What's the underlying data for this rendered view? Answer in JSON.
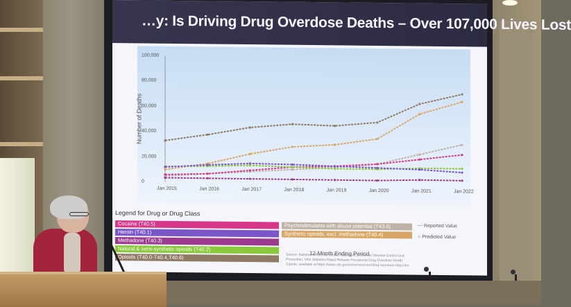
{
  "slide": {
    "title": "…y: Is Driving Drug Overdose Deaths – Over 107,000 Lives Lost"
  },
  "chart_data": {
    "type": "line",
    "title": "…y: Is Driving Drug Overdose Deaths – Over 107,000 Lives Lost",
    "ylabel": "Number of Deaths",
    "xlabel": "12-Month Ending Period",
    "ylim": [
      0,
      100000
    ],
    "yticks": [
      "100,000",
      "80,000",
      "60,000",
      "40,000",
      "20,000",
      "0"
    ],
    "x": [
      "Jan 2015",
      "Jan 2016",
      "Jan 2017",
      "Jan 2018",
      "Jan 2019",
      "Jan 2020",
      "Jan 2021",
      "Jan 2022"
    ],
    "series": [
      {
        "name": "Opioids (T40.0-T40.4,T40.6)",
        "color": "#8f7a63",
        "values": [
          33000,
          38000,
          44000,
          47000,
          46000,
          49000,
          64000,
          72000
        ]
      },
      {
        "name": "Synthetic opioids, excl. methadone (T40.4)",
        "color": "#d8a765",
        "values": [
          10000,
          15000,
          23000,
          29000,
          31000,
          36000,
          56000,
          66000
        ]
      },
      {
        "name": "Psychostimulants with abuse potential (T43.6)",
        "color": "#bfb2a6",
        "values": [
          5000,
          7000,
          9000,
          11000,
          13000,
          16000,
          24000,
          32000
        ]
      },
      {
        "name": "Cocaine (T40.5)",
        "color": "#d9388a",
        "values": [
          6000,
          7000,
          10000,
          13000,
          14000,
          16000,
          20000,
          24000
        ]
      },
      {
        "name": "Natural & semi-synthetic opioids (T40.2)",
        "color": "#8ac83c",
        "values": [
          12500,
          13000,
          14000,
          13000,
          12000,
          12000,
          13000,
          13000
        ]
      },
      {
        "name": "Heroin (T40.1)",
        "color": "#7a56c9",
        "values": [
          12000,
          14000,
          15500,
          15000,
          14000,
          13000,
          12000,
          10000
        ]
      },
      {
        "name": "Methadone (T40.3)",
        "color": "#9b3a8e",
        "values": [
          3500,
          3400,
          3300,
          3200,
          3100,
          3000,
          3800,
          3600
        ]
      }
    ],
    "legend": {
      "title": "Legend for Drug or Drug Class",
      "reported": "Reported Value",
      "predicted": "Predicted Value"
    }
  },
  "source_note": "Source: National Center for Health Statistics/Centers for Disease Control and Prevention. Vital Statistics Rapid Release Provisional Drug Overdose Death Counts. available at https://www.cdc.gov/nchs/nvss/vsrr/drug-overdose-data.htm"
}
